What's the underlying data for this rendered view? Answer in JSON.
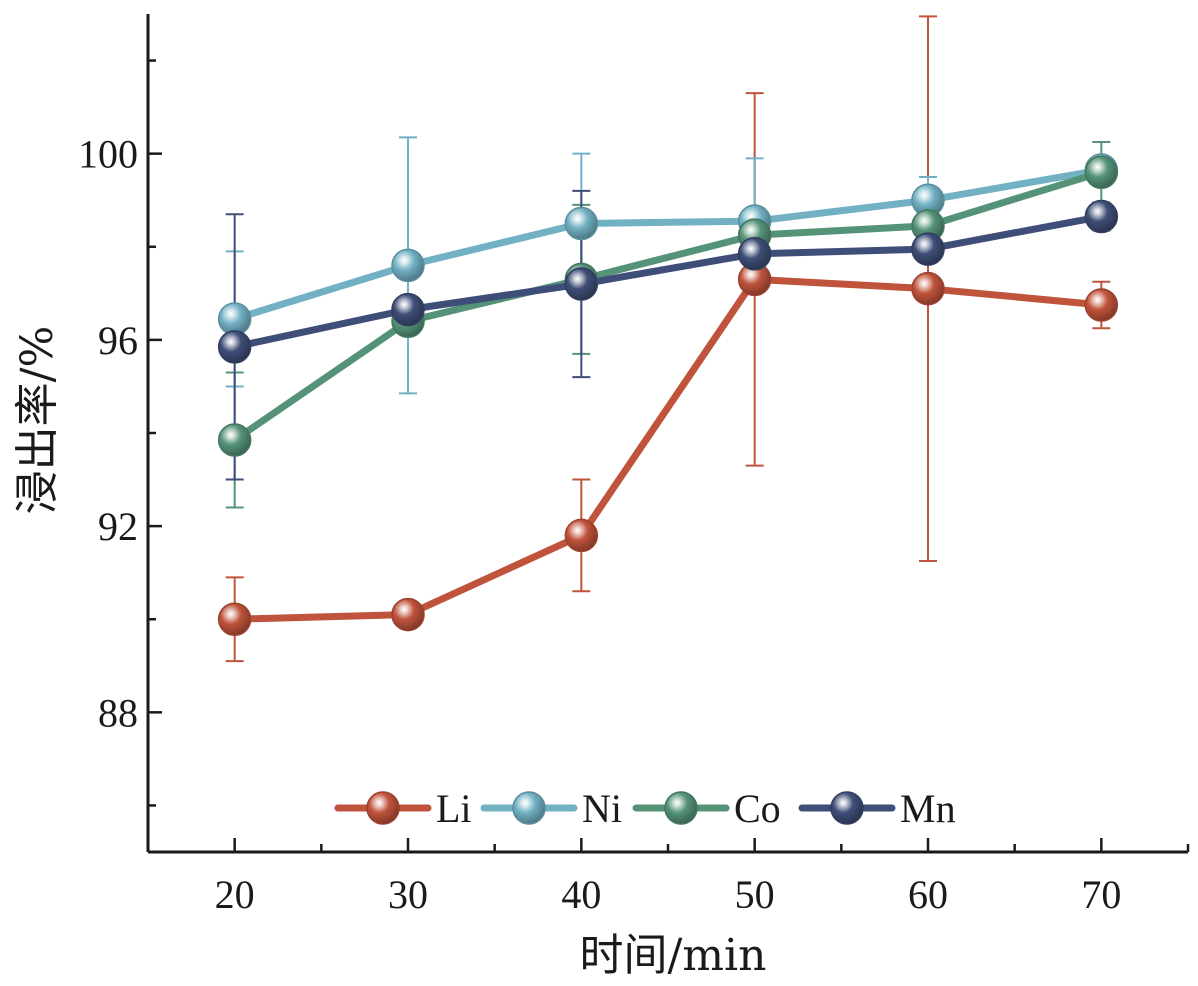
{
  "chart_data": {
    "type": "line",
    "title": "",
    "xlabel": "时间/min",
    "ylabel": "浸出率/%",
    "x": [
      20,
      30,
      40,
      50,
      60,
      70
    ],
    "x_ticks": [
      20,
      30,
      40,
      50,
      60,
      70
    ],
    "x_tick_labels": [
      "20",
      "30",
      "40",
      "50",
      "60",
      "70"
    ],
    "xlim": [
      15,
      75
    ],
    "y_ticks": [
      88,
      92,
      96,
      100
    ],
    "y_tick_labels": [
      "88",
      "92",
      "96",
      "100"
    ],
    "ylim": [
      85,
      103
    ],
    "grid": false,
    "legend_position": "bottom-center",
    "series": [
      {
        "name": "Li",
        "color": "#c0533b",
        "values": [
          90.0,
          90.1,
          91.8,
          97.3,
          97.1,
          96.75
        ],
        "errors": [
          0.9,
          0.0,
          1.2,
          4.0,
          5.85,
          0.5
        ]
      },
      {
        "name": "Ni",
        "color": "#72b1c4",
        "values": [
          96.45,
          97.6,
          98.5,
          98.55,
          99.0,
          99.65
        ],
        "errors": [
          1.45,
          2.75,
          1.5,
          1.35,
          0.5,
          0.0
        ]
      },
      {
        "name": "Co",
        "color": "#559378",
        "values": [
          93.85,
          96.4,
          97.3,
          98.25,
          98.45,
          99.6
        ],
        "errors": [
          1.45,
          0.0,
          1.6,
          0.5,
          0.0,
          0.65
        ]
      },
      {
        "name": "Mn",
        "color": "#3f4e78",
        "values": [
          95.85,
          96.65,
          97.2,
          97.85,
          97.95,
          98.65
        ],
        "errors": [
          2.85,
          0.0,
          2.0,
          0.0,
          0.0,
          0.3
        ]
      }
    ]
  }
}
